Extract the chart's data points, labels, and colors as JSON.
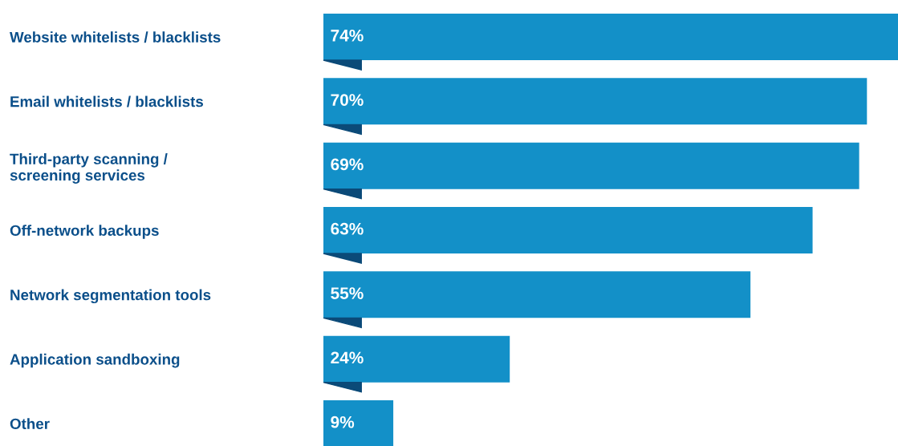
{
  "chart_data": {
    "type": "bar",
    "orientation": "horizontal",
    "relative": false,
    "categories": [
      "Website whitelists / blacklists",
      "Email whitelists / blacklists",
      "Third-party scanning /\nscreening services",
      "Off-network backups",
      "Network segmentation tools",
      "Application sandboxing",
      "Other"
    ],
    "values": [
      74,
      70,
      69,
      63,
      55,
      24,
      9
    ],
    "value_labels": [
      "74%",
      "70%",
      "69%",
      "63%",
      "55%",
      "24%",
      "9%"
    ],
    "color": "#1390c8",
    "grid": false,
    "legend": false
  }
}
